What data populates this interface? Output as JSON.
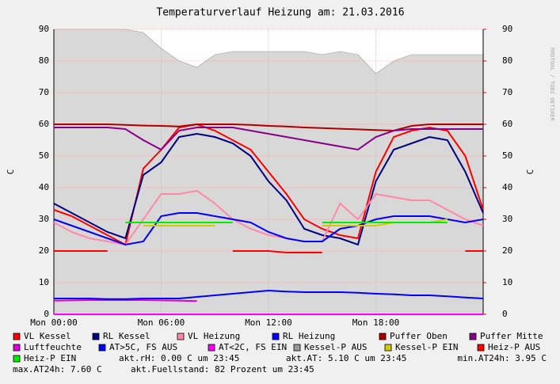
{
  "chart_data": {
    "type": "line",
    "title": "Temperaturverlauf Heizung am: 21.03.2016",
    "watermark": "RRDTOOL / TOBI OETIKER",
    "ylabel": "C",
    "y2label": "C",
    "x": [
      0,
      1,
      2,
      3,
      4,
      5,
      6,
      7,
      8,
      9,
      10,
      11,
      12,
      13,
      14,
      15,
      16,
      17,
      18,
      19,
      20,
      21,
      22,
      23,
      24
    ],
    "xlim": [
      0,
      24
    ],
    "xticks": [
      {
        "value": 0,
        "label": "Mon 00:00"
      },
      {
        "value": 6,
        "label": "Mon 06:00"
      },
      {
        "value": 12,
        "label": "Mon 12:00"
      },
      {
        "value": 18,
        "label": "Mon 18:00"
      }
    ],
    "ylim": [
      0,
      90
    ],
    "yticks": [
      0,
      10,
      20,
      30,
      40,
      50,
      60,
      70,
      80,
      90
    ],
    "y2lim": [
      0,
      90
    ],
    "y2ticks": [
      0,
      10,
      20,
      30,
      40,
      50,
      60,
      70,
      80,
      90
    ],
    "grid": true,
    "series": [
      {
        "name": "VL Kessel",
        "color": "#ff0000",
        "values": [
          33,
          31,
          28,
          25,
          22,
          46,
          52,
          59,
          60,
          58,
          55,
          52,
          45,
          38,
          30,
          27,
          25,
          24,
          45,
          56,
          58,
          59,
          58,
          50,
          33
        ]
      },
      {
        "name": "RL Kessel",
        "color": "#000080",
        "values": [
          35,
          32,
          29,
          26,
          24,
          44,
          48,
          56,
          57,
          56,
          54,
          50,
          42,
          36,
          27,
          25,
          24,
          22,
          42,
          52,
          54,
          56,
          55,
          45,
          32
        ]
      },
      {
        "name": "VL Heizung",
        "color": "#ff88aa",
        "values": [
          29,
          26,
          24,
          23,
          22,
          30,
          38,
          38,
          39,
          35,
          30,
          27,
          25,
          24,
          23,
          23,
          35,
          30,
          38,
          37,
          36,
          36,
          33,
          30,
          28
        ]
      },
      {
        "name": "RL Heizung",
        "color": "#0000ff",
        "values": [
          30,
          28,
          26,
          24,
          22,
          23,
          31,
          32,
          32,
          31,
          30,
          29,
          26,
          24,
          23,
          23,
          27,
          28,
          30,
          31,
          31,
          31,
          30,
          29,
          30
        ]
      },
      {
        "name": "Puffer Oben",
        "color": "#aa0000",
        "values": [
          60,
          60,
          60,
          60,
          59.8,
          59.6,
          59.5,
          59.3,
          60,
          60,
          60,
          59.8,
          59.5,
          59.3,
          59,
          58.8,
          58.6,
          58.4,
          58.2,
          58,
          59.5,
          60,
          60,
          60,
          60
        ]
      },
      {
        "name": "Puffer Mitte",
        "color": "#880088",
        "values": [
          59,
          59,
          59,
          59,
          58.5,
          55,
          52,
          58,
          59,
          59,
          59,
          58,
          57,
          56,
          55,
          54,
          53,
          52,
          56,
          58,
          58.5,
          58.5,
          58.5,
          58.5,
          58.5
        ]
      },
      {
        "name": "Luftfeuchte",
        "color": "#dd00dd",
        "values": [
          4.3,
          4.4,
          4.5,
          4.5,
          4.5,
          4.5,
          4.4,
          4.3,
          4.2,
          null,
          null,
          null,
          null,
          null,
          null,
          null,
          null,
          null,
          null,
          null,
          null,
          null,
          null,
          null,
          null
        ]
      },
      {
        "name": "AT>5C, FS AUS",
        "color": "#0000ff",
        "values": [
          5,
          5,
          5,
          4.8,
          4.8,
          5,
          5,
          5,
          5.5,
          6,
          6.5,
          7,
          7.5,
          7.2,
          7,
          7,
          7,
          6.8,
          6.5,
          6.3,
          6,
          6,
          5.7,
          5.3,
          5
        ]
      },
      {
        "name": "AT<2C, FS EIN",
        "color": "#ff00ff",
        "values": [
          0,
          0,
          0,
          0,
          0,
          0,
          0,
          0,
          0,
          0,
          0,
          0,
          0,
          0,
          0,
          0,
          0,
          0,
          0,
          0,
          0,
          0,
          0,
          0,
          0
        ]
      },
      {
        "name": "Kessel-P AUS",
        "color": "#999999",
        "area": true,
        "values": [
          90,
          90,
          90,
          90,
          90,
          89,
          84,
          80,
          78,
          82,
          83,
          83,
          83,
          83,
          83,
          82,
          83,
          82,
          76,
          80,
          82,
          82,
          82,
          82,
          82
        ]
      },
      {
        "name": "Kessel-P EIN",
        "color": "#cccc00",
        "values": [
          null,
          null,
          null,
          null,
          null,
          28,
          28,
          28,
          28,
          28,
          null,
          null,
          null,
          null,
          null,
          28,
          28,
          28,
          28,
          29,
          29,
          29,
          30,
          null,
          null
        ]
      },
      {
        "name": "Heiz-P AUS",
        "color": "#ff0000",
        "values": [
          20,
          20,
          20,
          20,
          null,
          null,
          null,
          null,
          null,
          null,
          20,
          20,
          20,
          19.5,
          19.5,
          19.5,
          null,
          null,
          null,
          null,
          null,
          null,
          null,
          20,
          20
        ]
      },
      {
        "name": "Heiz-P EIN",
        "color": "#00ee00",
        "values": [
          null,
          null,
          null,
          null,
          29,
          29,
          29,
          29,
          29,
          29,
          29,
          null,
          null,
          null,
          null,
          29,
          29,
          29,
          29,
          29,
          29,
          29,
          29,
          null,
          null
        ]
      }
    ],
    "annotations": [
      "akt.rH: 0.00 C um 23:45",
      "akt.AT: 5.10 C um 23:45",
      "min.AT24h: 3.95 C",
      "max.AT24h: 7.60 C",
      "akt.Fuellstand:   82 Prozent um 23:45"
    ]
  }
}
